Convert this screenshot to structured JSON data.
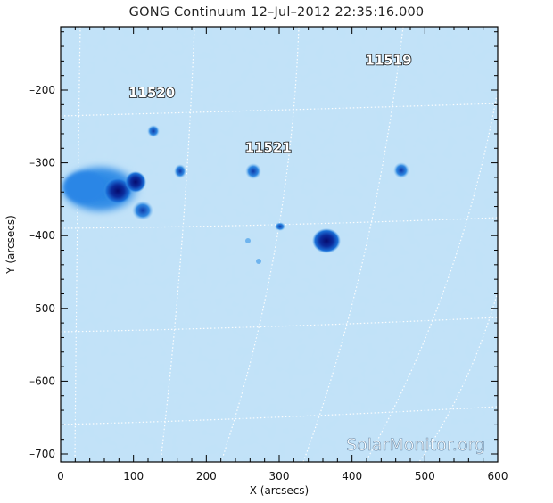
{
  "title": "GONG Continuum 12–Jul–2012 22:35:16.000",
  "axes": {
    "xlabel": "X (arcsecs)",
    "ylabel": "Y (arcsecs)",
    "x_ticks": [
      "0",
      "100",
      "200",
      "300",
      "400",
      "500",
      "600"
    ],
    "y_ticks": [
      "–200",
      "–300",
      "–400",
      "–500",
      "–600",
      "–700"
    ]
  },
  "regions": [
    {
      "label": "11520",
      "x": 125,
      "y": -210
    },
    {
      "label": "11521",
      "x": 285,
      "y": -285
    },
    {
      "label": "11519",
      "x": 450,
      "y": -165
    }
  ],
  "watermark": "SolarMonitor.org",
  "colors": {
    "background": "#bfe0f8",
    "sunspot_dark": "#08107a",
    "sunspot_mid": "#1a6fd8",
    "grid": "#ffffff"
  }
}
